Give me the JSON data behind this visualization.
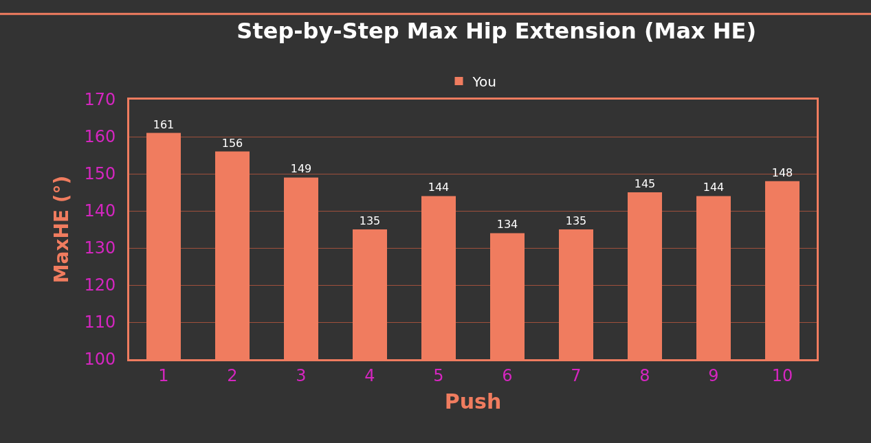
{
  "chart_data": {
    "type": "bar",
    "title": "Step-by-Step Max Hip Extension (Max HE)",
    "xlabel": "Push",
    "ylabel": "MaxHE (°)",
    "categories": [
      "1",
      "2",
      "3",
      "4",
      "5",
      "6",
      "7",
      "8",
      "9",
      "10"
    ],
    "series": [
      {
        "name": "You",
        "color": "#f07c5f",
        "values": [
          161,
          156,
          149,
          135,
          144,
          134,
          135,
          145,
          144,
          148
        ]
      }
    ],
    "ylim": [
      100,
      170
    ],
    "yticks": [
      100,
      110,
      120,
      130,
      140,
      150,
      160,
      170
    ],
    "grid": "y",
    "legend": "top",
    "data_labels": true
  }
}
